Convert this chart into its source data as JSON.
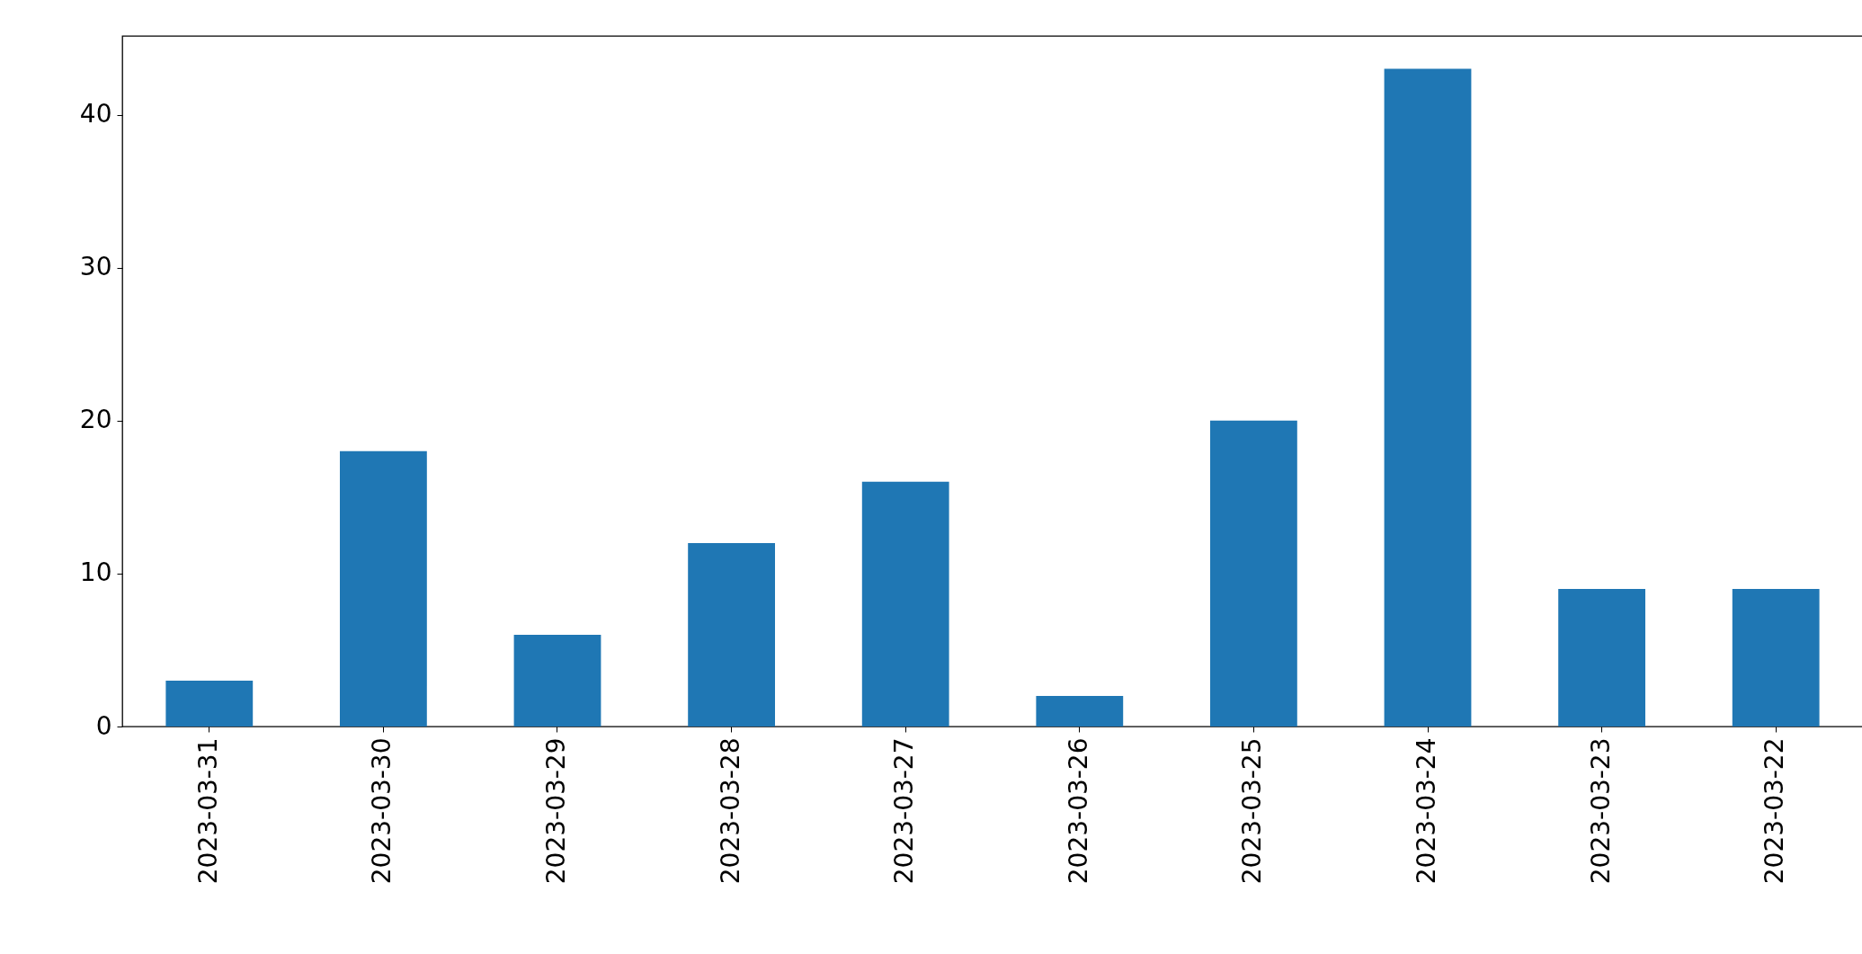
{
  "chart_data": {
    "type": "bar",
    "categories": [
      "2023-03-31",
      "2023-03-30",
      "2023-03-29",
      "2023-03-28",
      "2023-03-27",
      "2023-03-26",
      "2023-03-25",
      "2023-03-24",
      "2023-03-23",
      "2023-03-22"
    ],
    "values": [
      3,
      18,
      6,
      12,
      16,
      2,
      20,
      43,
      9,
      9
    ],
    "color": "#1f77b4",
    "ylim": [
      0,
      45.15
    ],
    "yticks": [
      0,
      10,
      20,
      30,
      40
    ]
  }
}
